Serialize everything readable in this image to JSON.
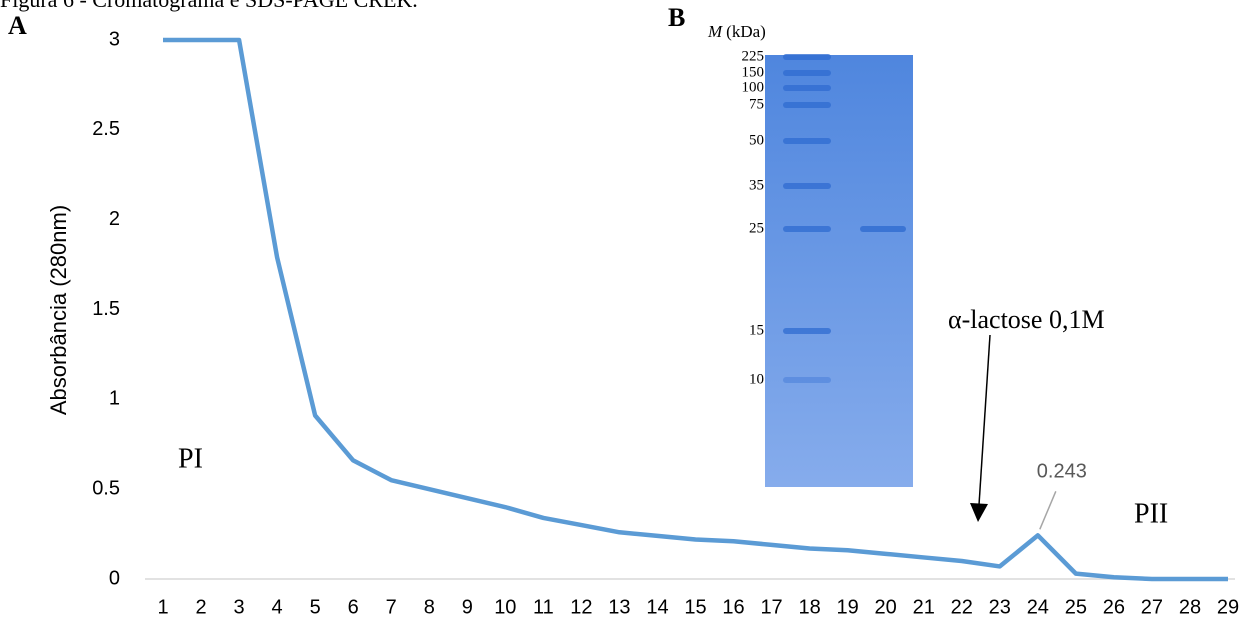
{
  "figure_title": "Figura 6 - Cromatograma e SDS-PAGE CREK.",
  "chart_data": {
    "type": "line",
    "panel_label": "A",
    "categories": [
      1,
      2,
      3,
      4,
      5,
      6,
      7,
      8,
      9,
      10,
      11,
      12,
      13,
      14,
      15,
      16,
      17,
      18,
      19,
      20,
      21,
      22,
      23,
      24,
      25,
      26,
      27,
      28,
      29
    ],
    "values": [
      3,
      3,
      3,
      1.79,
      0.91,
      0.66,
      0.55,
      0.5,
      0.45,
      0.4,
      0.34,
      0.3,
      0.26,
      0.24,
      0.22,
      0.21,
      0.19,
      0.17,
      0.16,
      0.14,
      0.12,
      0.1,
      0.07,
      0.243,
      0.03,
      0.01,
      0,
      0,
      0
    ],
    "color": "#5b9bd5",
    "ylabel": "Absorbância (280nm)",
    "ylim": [
      0,
      3
    ],
    "yticks": [
      0,
      0.5,
      1,
      1.5,
      2,
      2.5,
      3
    ],
    "annotations": [
      "PI",
      "PII",
      "α-lactose 0,1M"
    ]
  },
  "gel": {
    "panel_label": "B",
    "mass_symbol": "M",
    "unit_label": "(kDa)",
    "markers": [
      225,
      150,
      100,
      75,
      50,
      35,
      25,
      15,
      10
    ]
  }
}
